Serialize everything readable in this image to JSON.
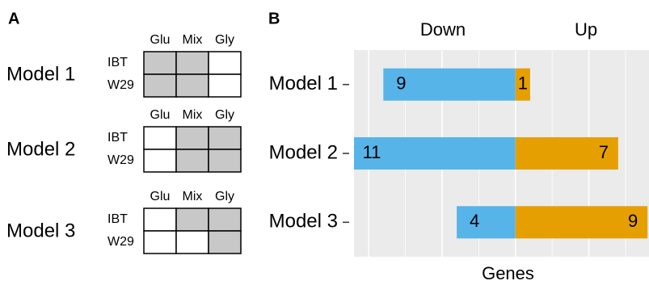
{
  "panel_a": {
    "label": "A",
    "columns": [
      "Glu",
      "Mix",
      "Gly"
    ],
    "rows": [
      "IBT",
      "W29"
    ],
    "models": [
      {
        "name": "Model 1",
        "filled": [
          [
            true,
            true,
            false
          ],
          [
            true,
            true,
            false
          ]
        ]
      },
      {
        "name": "Model 2",
        "filled": [
          [
            false,
            true,
            true
          ],
          [
            false,
            true,
            true
          ]
        ]
      },
      {
        "name": "Model 3",
        "filled": [
          [
            false,
            true,
            true
          ],
          [
            false,
            false,
            true
          ]
        ]
      }
    ],
    "fill_color": "#c8c8c8"
  },
  "chart_data": {
    "type": "bar",
    "orientation": "horizontal",
    "label": "B",
    "headers": [
      "Down",
      "Up"
    ],
    "xlabel": "Genes",
    "categories": [
      "Model 1",
      "Model 2",
      "Model 3"
    ],
    "series": [
      {
        "name": "Down",
        "color": "#56b4e9",
        "values": [
          -9,
          -11,
          -4
        ],
        "value_labels": [
          "9",
          "11",
          "4"
        ]
      },
      {
        "name": "Up",
        "color": "#e69f00",
        "values": [
          1,
          7,
          9
        ]
      }
    ],
    "xlim": [
      -11,
      9.1
    ],
    "xgrid_major": [
      -10,
      -5,
      0,
      5
    ],
    "xgrid_minor": [
      -7.5,
      -2.5,
      2.5,
      7.5
    ],
    "background": "#ebebeb"
  }
}
